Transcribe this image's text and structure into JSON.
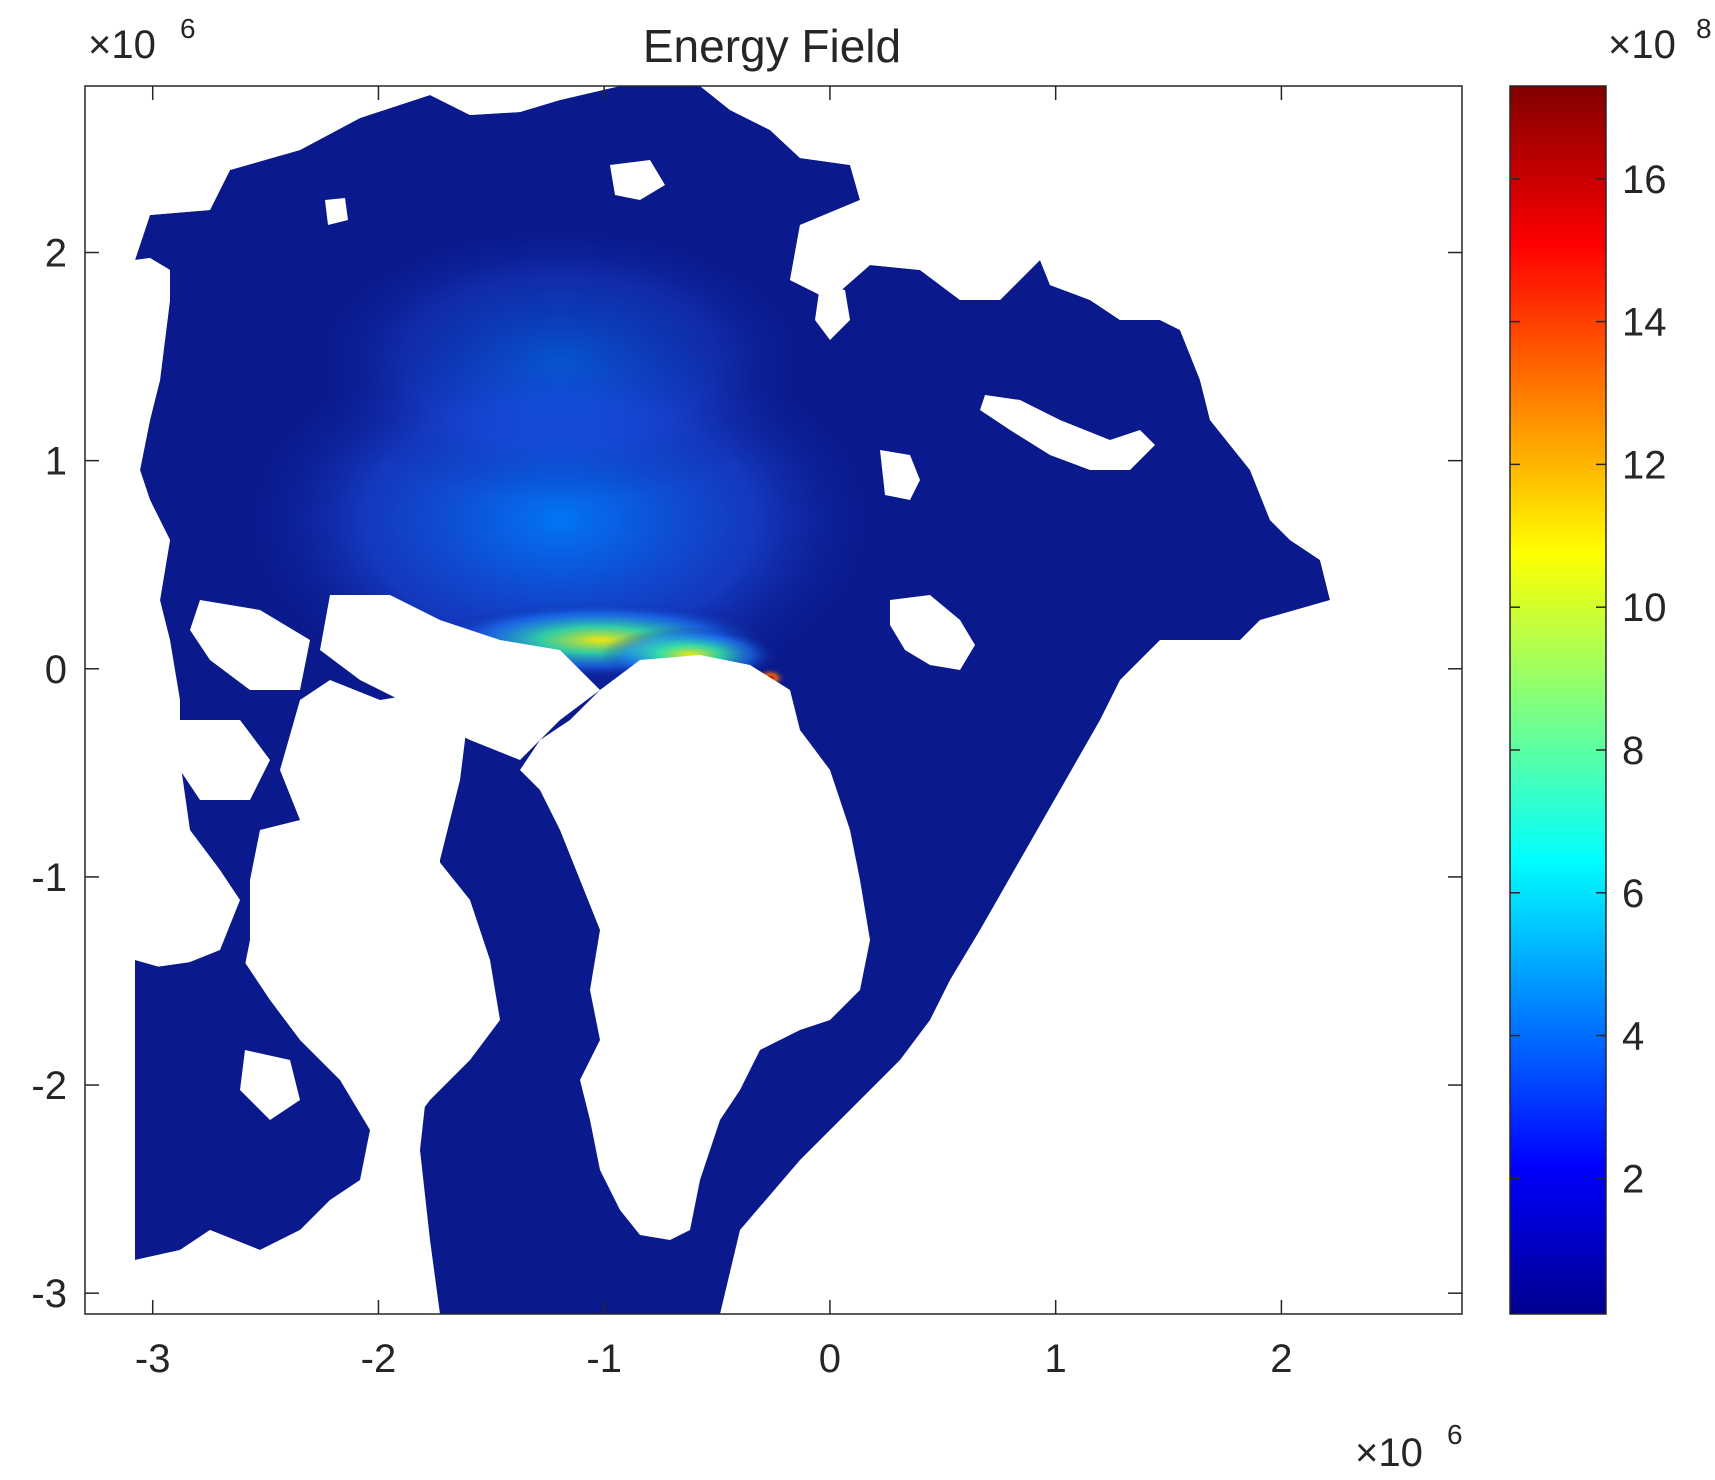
{
  "chart_data": {
    "type": "heatmap",
    "title": "Energy Field",
    "xlabel": "",
    "ylabel": "",
    "x_exponent_label": "×10",
    "x_exponent_power": "6",
    "y_exponent_label": "×10",
    "y_exponent_power": "6",
    "xlim": [
      -3.3,
      2.8
    ],
    "ylim": [
      -3.1,
      2.8
    ],
    "x_ticks": [
      -3,
      -2,
      -1,
      0,
      1,
      2
    ],
    "x_tick_labels": [
      "-3",
      "-2",
      "-1",
      "0",
      "1",
      "2"
    ],
    "y_ticks": [
      -3,
      -2,
      -1,
      0,
      1,
      2
    ],
    "y_tick_labels": [
      "-3",
      "-2",
      "-1",
      "0",
      "1",
      "2"
    ],
    "grid": false,
    "colormap": "jet",
    "colorbar": {
      "exponent_label": "×10",
      "exponent_power": "8",
      "range": [
        0.1,
        17.3
      ],
      "ticks": [
        2,
        4,
        6,
        8,
        10,
        12,
        14,
        16
      ],
      "tick_labels": [
        "2",
        "4",
        "6",
        "8",
        "10",
        "12",
        "14",
        "16"
      ]
    },
    "colors": {
      "background_field": "#0a1a8c",
      "land": "#ffffff",
      "axis": "#262626"
    }
  }
}
